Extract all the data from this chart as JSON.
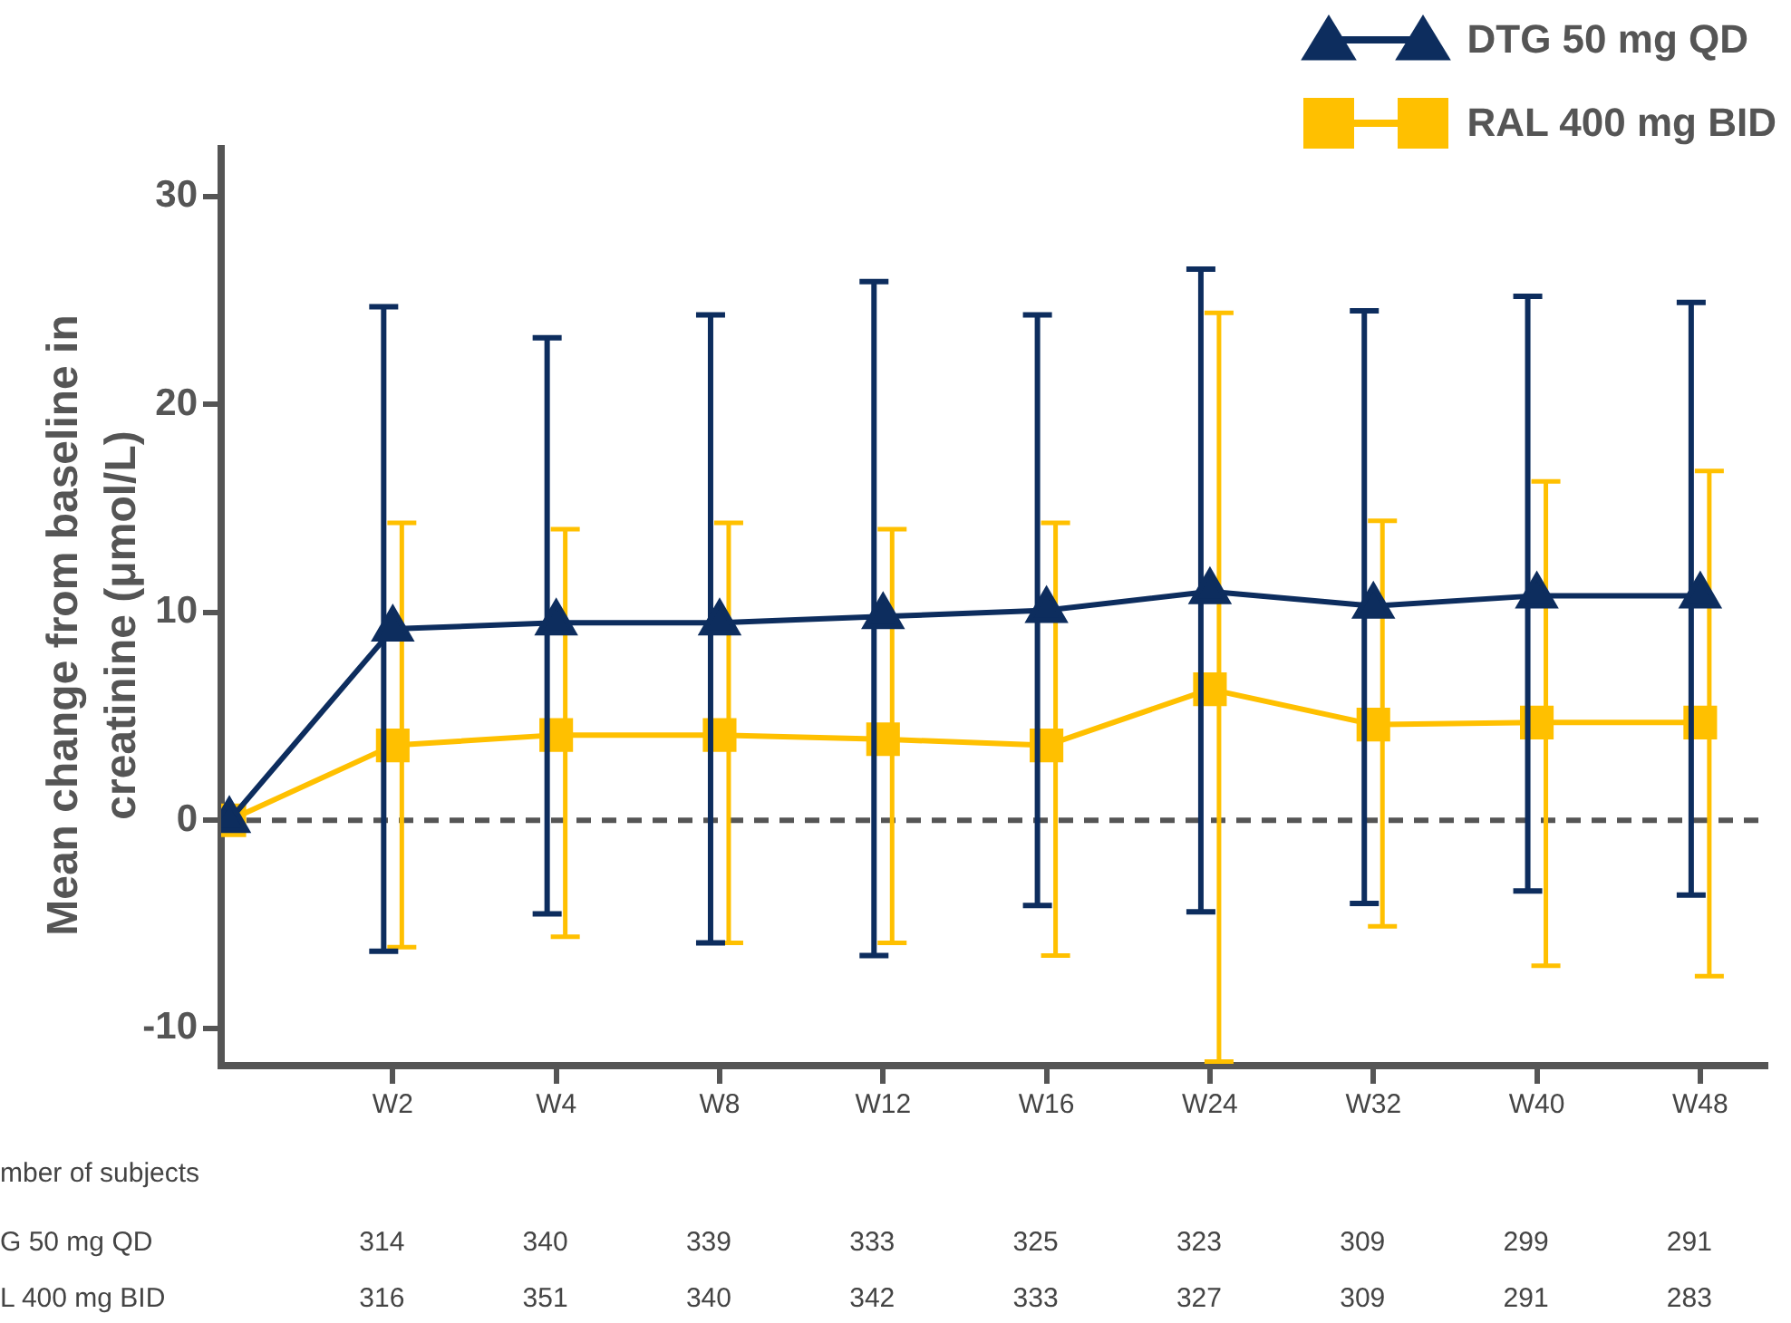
{
  "chart_data": {
    "type": "line",
    "ylabel": "Mean change from baseline in creatinine (μmol/L)",
    "categories": [
      null,
      "W2",
      "W4",
      "W8",
      "W12",
      "W16",
      "W24",
      "W32",
      "W40",
      "W48"
    ],
    "ylim": [
      -11.8,
      32.3
    ],
    "yticks": [
      -10,
      0,
      10,
      20,
      30
    ],
    "grid": false,
    "legend": "top right",
    "line_style": "solid",
    "series": [
      {
        "name": "DTG 50 mg QD",
        "color": "#0d2d5e",
        "marker": "triangle",
        "values": [
          0,
          9.2,
          9.5,
          9.5,
          9.8,
          10.1,
          11.0,
          10.3,
          10.8,
          10.8
        ],
        "errors": [
          null,
          [
            -6.3,
            24.7
          ],
          [
            -4.5,
            23.2
          ],
          [
            -5.9,
            24.3
          ],
          [
            -6.5,
            25.9
          ],
          [
            -4.1,
            24.3
          ],
          [
            -4.4,
            26.5
          ],
          [
            -4.0,
            24.5
          ],
          [
            -3.4,
            25.2
          ],
          [
            -3.6,
            24.9
          ]
        ]
      },
      {
        "name": "RAL 400 mg BID",
        "color": "#ffc000",
        "marker": "square",
        "values": [
          0,
          3.6,
          4.1,
          4.1,
          3.9,
          3.6,
          6.3,
          4.6,
          4.7,
          4.7
        ],
        "errors": [
          null,
          [
            -6.1,
            14.3
          ],
          [
            -5.6,
            14.0
          ],
          [
            -5.9,
            14.3
          ],
          [
            -5.9,
            14.0
          ],
          [
            -6.5,
            14.3
          ],
          [
            -11.6,
            24.4
          ],
          [
            -5.1,
            14.4
          ],
          [
            -7.0,
            16.3
          ],
          [
            -7.5,
            16.8
          ]
        ]
      }
    ],
    "ref_lines": [
      {
        "axis": "y",
        "value": 0,
        "color": "#555555",
        "line_style": "dashed"
      }
    ],
    "annotations": [
      "mber of subjects",
      "G 50 mg QD",
      "314",
      "340",
      "339",
      "333",
      "325",
      "323",
      "309",
      "299",
      "291",
      "L 400 mg BID",
      "316",
      "351",
      "340",
      "342",
      "333",
      "327",
      "309",
      "291",
      "283"
    ]
  }
}
